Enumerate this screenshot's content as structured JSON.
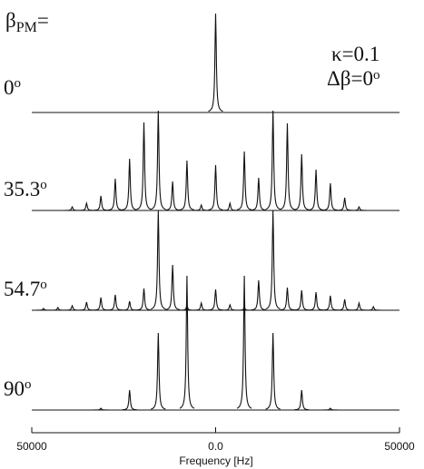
{
  "chart_data": {
    "type": "stacked-spectra",
    "title": {
      "symbol": "β",
      "subscript": "PM",
      "suffix": "="
    },
    "annotations": [
      "κ=0.1",
      "Δβ=0"
    ],
    "degree_mark": "o",
    "xlabel": "Frequency [Hz]",
    "xlim": [
      -50000,
      50000
    ],
    "xticks": [
      {
        "value": -50000,
        "label": "50000"
      },
      {
        "value": 0,
        "label": "0.0"
      },
      {
        "value": 50000,
        "label": "50000"
      }
    ],
    "color": "#111111",
    "series": [
      {
        "name": "0",
        "x": [
          0
        ],
        "values": [
          109
        ]
      },
      {
        "name": "35.3",
        "x": [
          -39000,
          -35100,
          -31200,
          -27300,
          -23400,
          -19500,
          -15600,
          -11700,
          -7800,
          -3900,
          0,
          3900,
          7800,
          11700,
          15600,
          19500,
          23400,
          27300,
          31200,
          35100,
          39000
        ],
        "values": [
          4,
          8,
          16,
          35,
          57,
          97,
          110,
          32,
          55,
          6,
          50,
          8,
          65,
          36,
          110,
          96,
          62,
          45,
          30,
          14,
          4
        ]
      },
      {
        "name": "54.7",
        "x": [
          -46800,
          -42900,
          -39000,
          -35100,
          -31200,
          -27300,
          -23400,
          -19500,
          -15600,
          -11700,
          -7800,
          -3900,
          0,
          3900,
          7800,
          11700,
          15600,
          19500,
          23400,
          27300,
          31200,
          35100,
          39000,
          42900
        ],
        "values": [
          2,
          3,
          5,
          9,
          14,
          17,
          10,
          24,
          110,
          50,
          5,
          8,
          23,
          6,
          3,
          33,
          110,
          25,
          22,
          20,
          16,
          12,
          8,
          4
        ]
      },
      {
        "name": "90",
        "x": [
          -31200,
          -23400,
          -15600,
          -7800,
          7800,
          15600,
          23400,
          31200
        ],
        "values": [
          2,
          22,
          85,
          148,
          148,
          85,
          22,
          2
        ]
      }
    ]
  }
}
